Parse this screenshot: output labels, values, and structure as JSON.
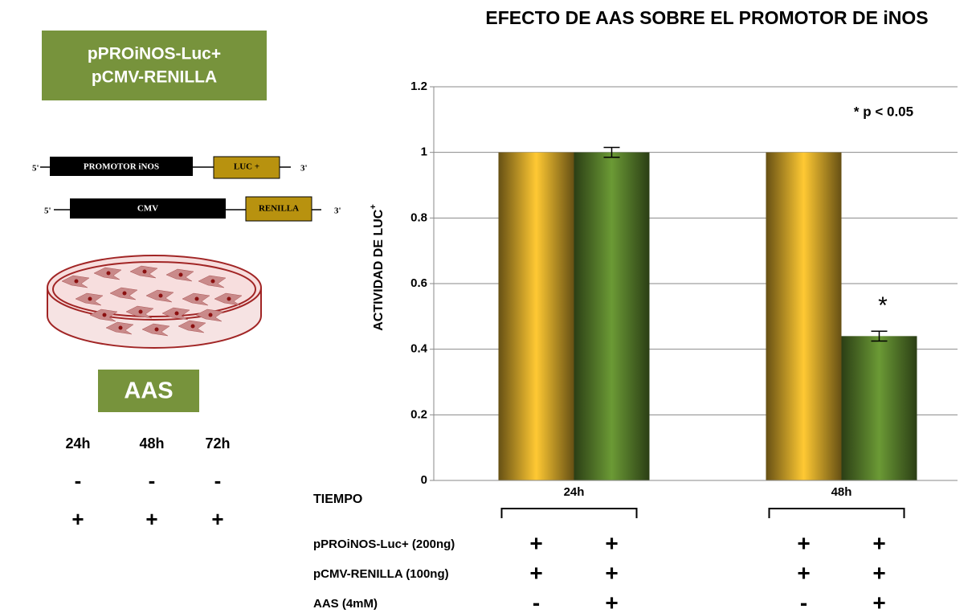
{
  "chart_data": {
    "type": "bar",
    "title": "EFECTO DE AAS SOBRE EL PROMOTOR DE iNOS",
    "ylabel": "ACTIVIDAD  DE  LUC",
    "ylabel_sup": "+",
    "categories": [
      "24h",
      "48h"
    ],
    "series": [
      {
        "color": "#ffc933",
        "values": [
          1,
          1
        ]
      },
      {
        "color": "#6b9a35",
        "values": [
          1.0,
          0.44
        ],
        "errors": [
          0.015,
          0.015
        ]
      }
    ],
    "ylim": [
      0,
      1.2
    ],
    "yticks": [
      0,
      0.2,
      0.4,
      0.6,
      0.8,
      1,
      1.2
    ],
    "grid": true,
    "annotations": {
      "pvalue": "* p < 0.05",
      "star": "*"
    },
    "conditions": {
      "title": "TIEMPO",
      "rows": [
        {
          "label": "pPROiNOS-Luc+ (200ng)",
          "marks": [
            "+",
            "+",
            "+",
            "+"
          ]
        },
        {
          "label": "pCMV-RENILLA (100ng)",
          "marks": [
            "+",
            "+",
            "+",
            "+"
          ]
        },
        {
          "label": "AAS (4mM)",
          "marks": [
            "-",
            "+",
            "-",
            "+"
          ]
        }
      ]
    }
  },
  "diagram": {
    "header": [
      "pPROiNOS-Luc+",
      "pCMV-RENILLA"
    ],
    "constructs": [
      {
        "five": "5'",
        "promoter": "PROMOTOR iNOS",
        "gene": "LUC +",
        "three": "3'"
      },
      {
        "five": "5'",
        "promoter": "CMV",
        "gene": "RENILLA",
        "three": "3'"
      }
    ],
    "treatment": "AAS",
    "times": [
      "24h",
      "48h",
      "72h"
    ],
    "rows": [
      [
        "-",
        "-",
        "-"
      ],
      [
        "+",
        "+",
        "+"
      ]
    ]
  }
}
